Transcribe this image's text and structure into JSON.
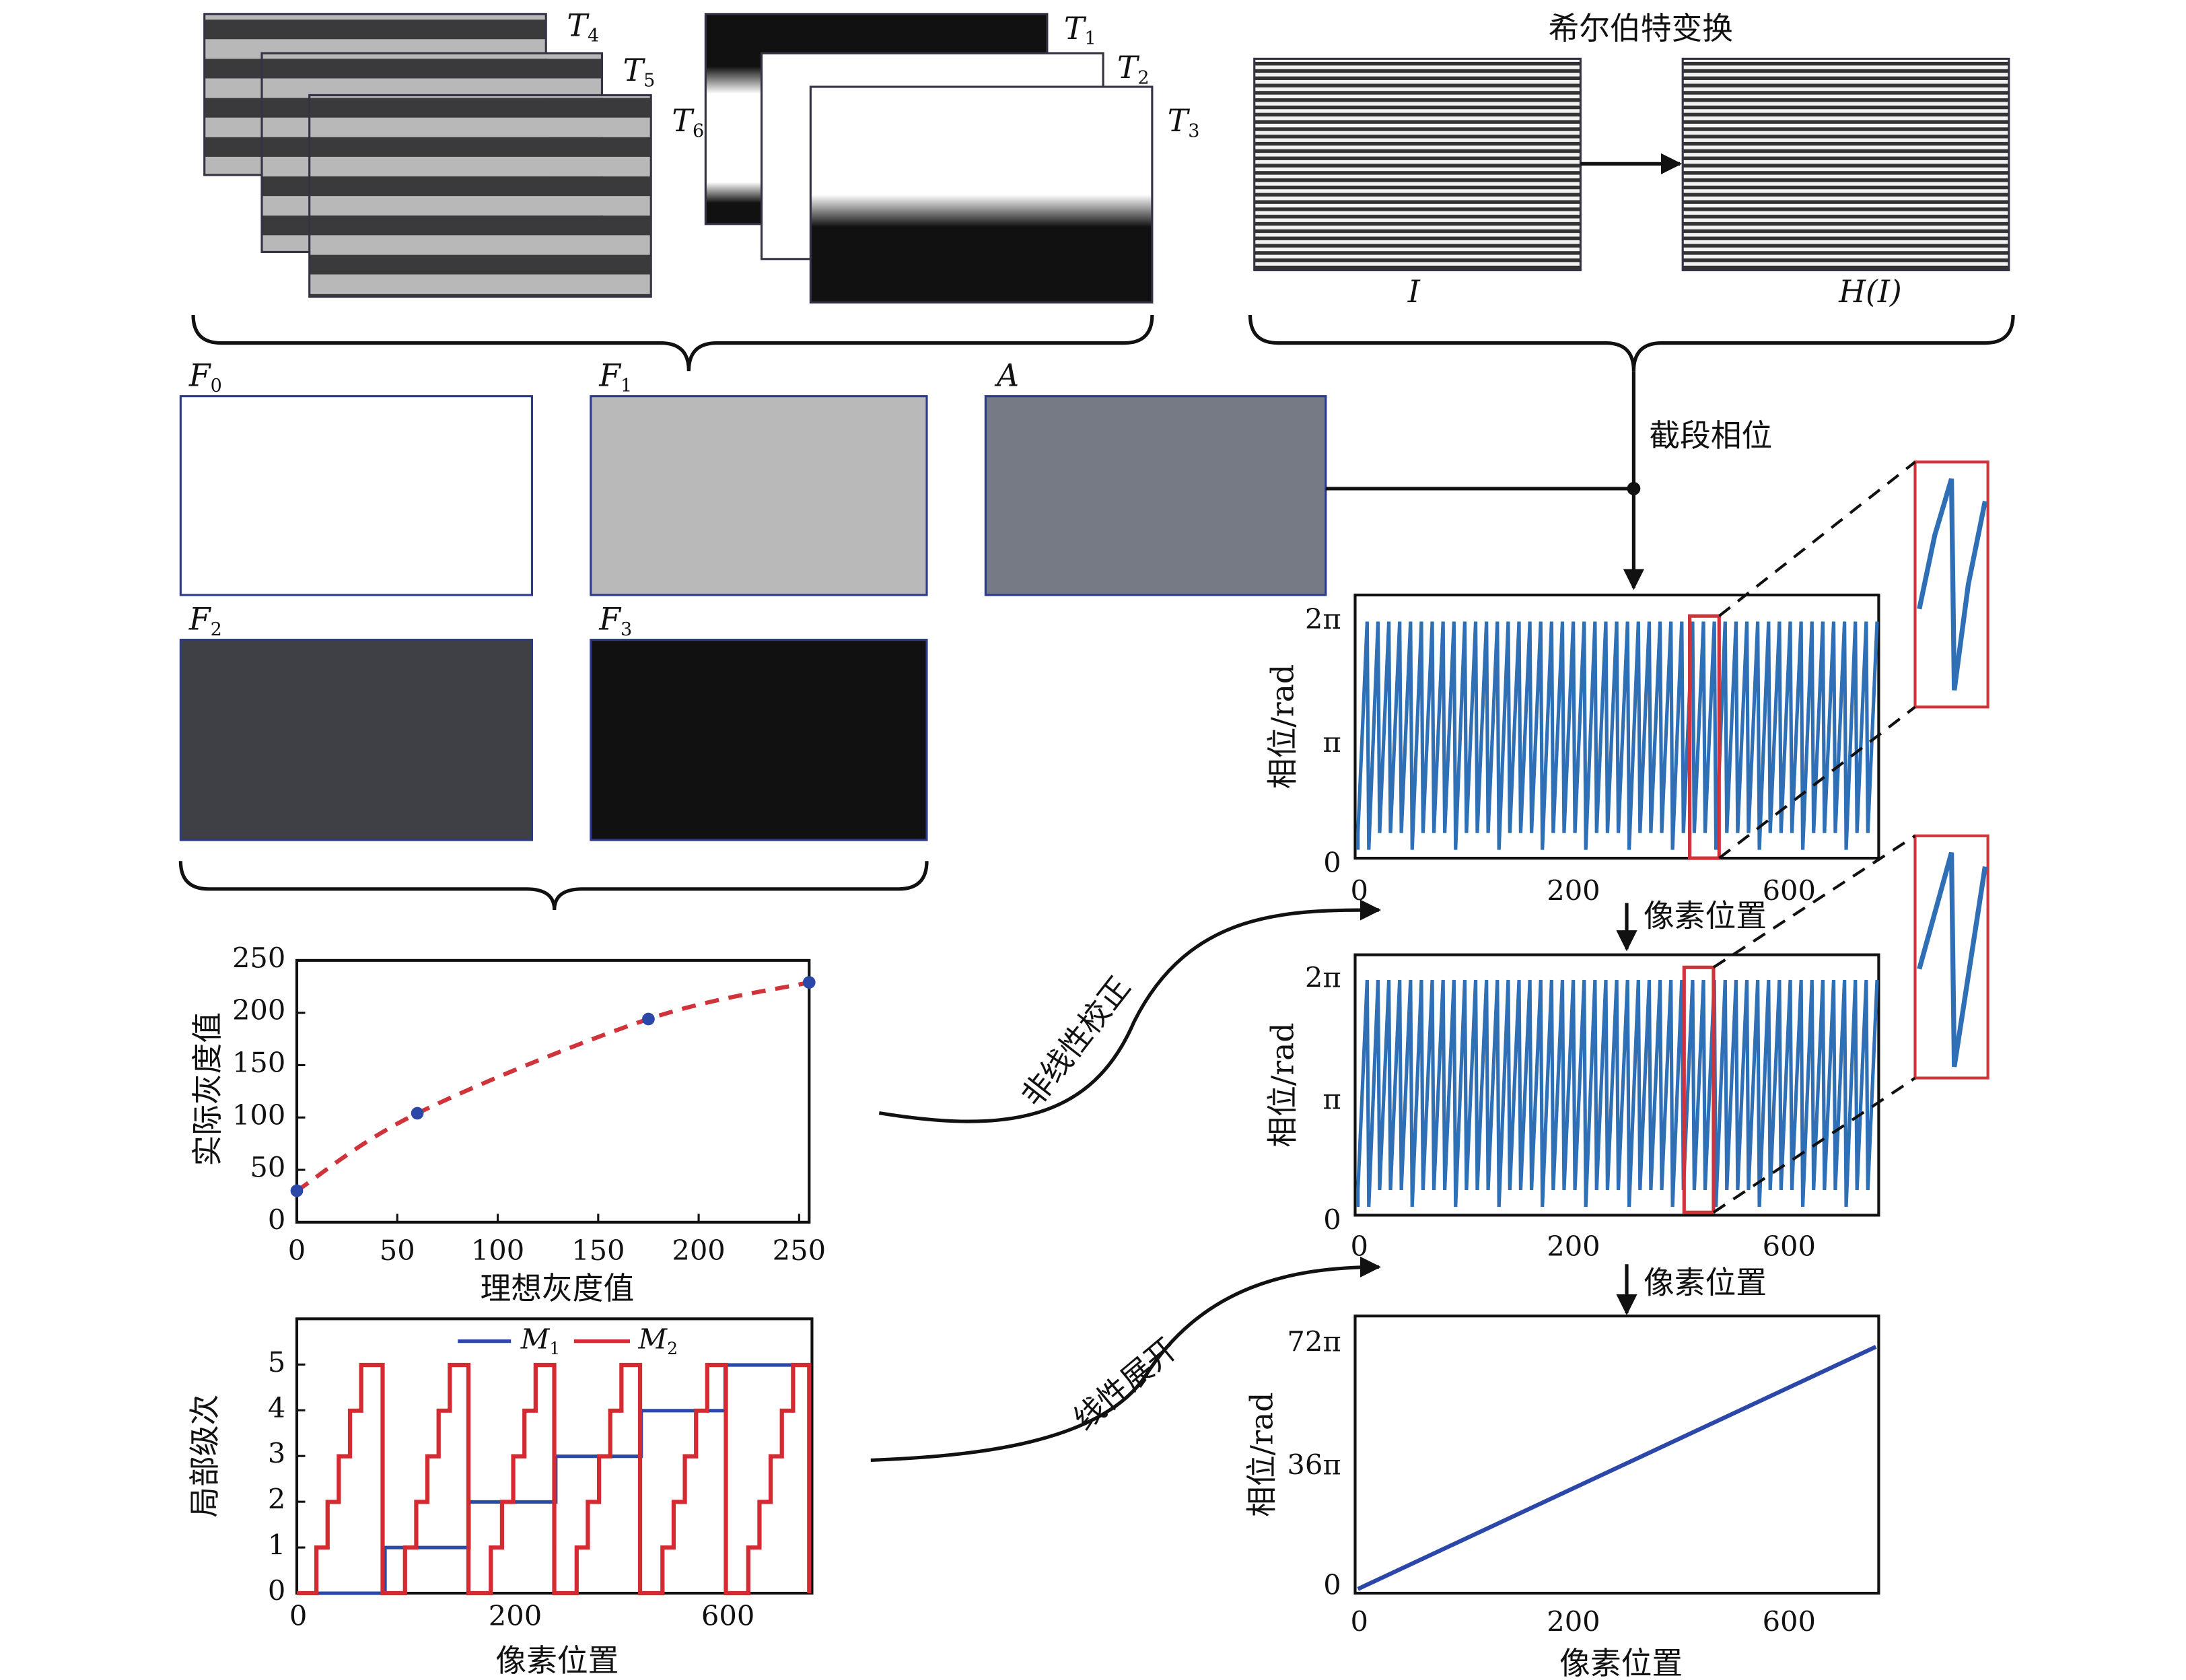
{
  "fringes": [
    {
      "base": "T",
      "sub": "4"
    },
    {
      "base": "T",
      "sub": "5"
    },
    {
      "base": "T",
      "sub": "6"
    }
  ],
  "bands": [
    {
      "base": "T",
      "sub": "1"
    },
    {
      "base": "T",
      "sub": "2"
    },
    {
      "base": "T",
      "sub": "3"
    }
  ],
  "hilbert": {
    "title": "希尔伯特变换",
    "input": "I",
    "output": "H(I)"
  },
  "coefficients": [
    {
      "base": "F",
      "sub": "0"
    },
    {
      "base": "F",
      "sub": "1"
    },
    {
      "base": "A"
    },
    {
      "base": "F",
      "sub": "2"
    },
    {
      "base": "F",
      "sub": "3"
    }
  ],
  "wrapped_label": "截段相位",
  "calibration": {
    "ylabel": "实际灰度值",
    "xlabel": "理想灰度值",
    "xlim": [
      0,
      255
    ],
    "ylim": [
      0,
      250
    ],
    "xticks": [
      0,
      50,
      100,
      150,
      200,
      250
    ],
    "yticks": [
      0,
      50,
      100,
      150,
      200,
      250
    ],
    "points": {
      "x": [
        0,
        60,
        175,
        255
      ],
      "y": [
        30,
        104,
        194,
        229
      ]
    }
  },
  "orders": {
    "ylabel": "局部级次",
    "xlabel": "像素位置",
    "xtick_labels": [
      "0",
      "200",
      "600"
    ],
    "ylim": [
      0,
      6
    ],
    "yticks": [
      0,
      1,
      2,
      3,
      4,
      5
    ],
    "legend": [
      {
        "base": "M",
        "sub": "1"
      },
      {
        "base": "M",
        "sub": "2"
      }
    ]
  },
  "arrows": [
    "非线性校正",
    "线性展开"
  ],
  "phase_plots": [
    {
      "ylabel": "相位/rad",
      "xlabel": "像素位置",
      "xtick_labels": [
        "0",
        "200",
        "600"
      ],
      "ytick_labels": [
        "0",
        "π",
        "2π"
      ]
    },
    {
      "ylabel": "相位/rad",
      "xlabel": "像素位置",
      "xtick_labels": [
        "0",
        "200",
        "600"
      ],
      "ytick_labels": [
        "0",
        "π",
        "2π"
      ]
    },
    {
      "ylabel": "相位/rad",
      "xlabel": "像素位置",
      "xtick_labels": [
        "0",
        "200",
        "600"
      ],
      "ytick_labels": [
        "0",
        "36π",
        "72π"
      ]
    }
  ]
}
